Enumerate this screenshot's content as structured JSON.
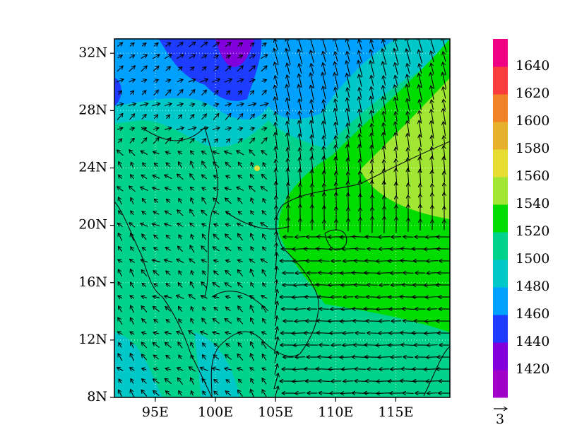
{
  "map_data": {
    "lon_range": [
      91.6,
      119.5
    ],
    "lat_range": [
      8,
      33
    ],
    "lon_ticks": [
      {
        "value": 95,
        "label": "95E"
      },
      {
        "value": 100,
        "label": "100E"
      },
      {
        "value": 105,
        "label": "105E"
      },
      {
        "value": 110,
        "label": "110E"
      },
      {
        "value": 115,
        "label": "115E"
      }
    ],
    "lat_ticks": [
      {
        "value": 8,
        "label": "8N"
      },
      {
        "value": 12,
        "label": "12N"
      },
      {
        "value": 16,
        "label": "16N"
      },
      {
        "value": 20,
        "label": "20N"
      },
      {
        "value": 24,
        "label": "24N"
      },
      {
        "value": 28,
        "label": "28N"
      },
      {
        "value": 32,
        "label": "32N"
      }
    ],
    "colorbar": {
      "levels": [
        1420,
        1440,
        1460,
        1480,
        1500,
        1520,
        1540,
        1560,
        1580,
        1600,
        1620,
        1640
      ],
      "colors": [
        "#a000c8",
        "#8200dc",
        "#1e3cff",
        "#00a0ff",
        "#00c8c8",
        "#00d28c",
        "#00dc00",
        "#a0e632",
        "#e6dc32",
        "#e6af2d",
        "#f08228",
        "#fa3c3c",
        "#f00082"
      ]
    },
    "reference_vector": {
      "label": "3"
    }
  }
}
